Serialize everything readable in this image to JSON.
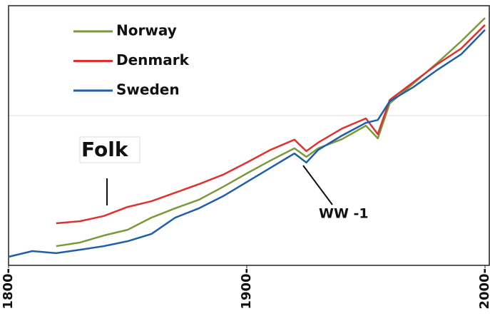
{
  "chart_data": {
    "type": "line",
    "x": [
      1800,
      1810,
      1820,
      1830,
      1840,
      1850,
      1860,
      1870,
      1880,
      1890,
      1900,
      1910,
      1920,
      1925,
      1930,
      1940,
      1950,
      1955,
      1960,
      1970,
      1980,
      1990,
      2000
    ],
    "series": [
      {
        "name": "Norway",
        "color": "#7a9a3a",
        "values": [
          null,
          null,
          7.4,
          8.8,
          11.5,
          13.7,
          18.4,
          22.0,
          25.3,
          30.2,
          35.4,
          40.4,
          45.1,
          41.8,
          45.1,
          48.6,
          53.8,
          48.9,
          62.4,
          70.1,
          78.0,
          86.3,
          95.3
        ]
      },
      {
        "name": "Denmark",
        "color": "#e03030",
        "values": [
          null,
          null,
          16.2,
          17.0,
          19.0,
          22.5,
          24.7,
          28.0,
          31.3,
          34.9,
          39.6,
          44.5,
          48.4,
          44.0,
          47.3,
          52.7,
          56.6,
          50.5,
          63.7,
          70.6,
          77.5,
          83.5,
          92.6
        ]
      },
      {
        "name": "Sweden",
        "color": "#1f5fa8",
        "values": [
          3.3,
          5.5,
          4.7,
          6.0,
          7.4,
          9.3,
          12.1,
          18.4,
          22.0,
          26.6,
          32.1,
          37.6,
          43.1,
          39.6,
          44.5,
          50.0,
          54.9,
          56.0,
          63.2,
          68.7,
          75.3,
          81.3,
          90.7
        ]
      }
    ],
    "xlim": [
      1800,
      2000
    ],
    "xticks": [
      {
        "value": 1800,
        "label": "1800-"
      },
      {
        "value": 1900,
        "label": "1900-"
      },
      {
        "value": 2000,
        "label": "2000-"
      }
    ],
    "ylim": [
      0,
      100
    ],
    "annotations": [
      "Folk",
      "WW -1"
    ]
  }
}
